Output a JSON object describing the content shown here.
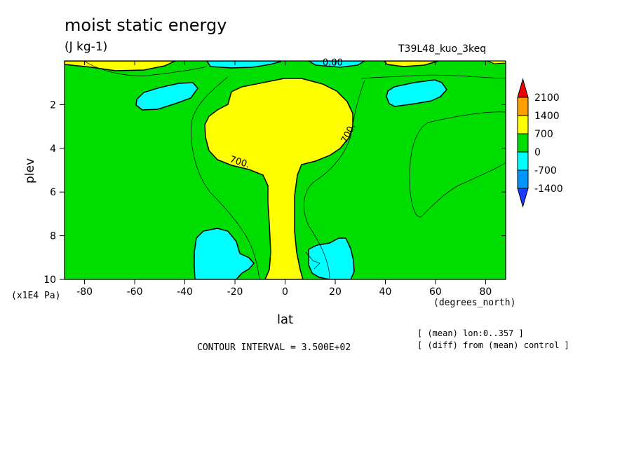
{
  "chart_data": {
    "type": "contour",
    "title": "moist static energy",
    "units": "(J kg-1)",
    "run_label": "T39L48_kuo_3keq",
    "xlabel": "lat",
    "x_units": "(degrees_north)",
    "ylabel": "plev",
    "y_units": "(x1E4 Pa)",
    "xlim": [
      -88,
      88
    ],
    "ylim": [
      10,
      0
    ],
    "x_ticks": [
      -80,
      -60,
      -40,
      -20,
      0,
      20,
      40,
      60,
      80
    ],
    "x_tick_labels": [
      "-80",
      "-60",
      "-40",
      "-20",
      "0",
      "20",
      "40",
      "60",
      "80"
    ],
    "y_ticks": [
      2,
      4,
      6,
      8,
      10
    ],
    "y_tick_labels": [
      "2",
      "4",
      "6",
      "8",
      "10"
    ],
    "contour_labels": [
      {
        "text": "0.00",
        "lat": 19,
        "plev": 0.05
      },
      {
        "text": "700.",
        "lat": 25,
        "plev": 3.3
      },
      {
        "text": "700.",
        "lat": -18,
        "plev": 4.6
      }
    ],
    "colorbar": {
      "levels": [
        "2100",
        "1400",
        "700",
        "0",
        "-700",
        "-1400"
      ],
      "colors": [
        "#ee0000",
        "#ffa000",
        "#ffff00",
        "#00dd00",
        "#00ffff",
        "#0096ff",
        "#1e3cff"
      ]
    },
    "contour_interval": "CONTOUR INTERVAL = 3.500E+02",
    "notes": [
      "[ (mean) lon:0..357 ]",
      "[ (diff) from (mean) control ]"
    ],
    "regions": [
      {
        "value_range": "700 to 1400",
        "desc": "central column and upper plume",
        "lat_range": [
          -32,
          28
        ],
        "plev_range": [
          0.9,
          10
        ]
      },
      {
        "value_range": "-700 to 0",
        "desc": "low-level negative SH",
        "lat_range": [
          -36,
          -12
        ],
        "plev_range": [
          7.7,
          10
        ]
      },
      {
        "value_range": "-700 to 0",
        "desc": "low-level negative NH",
        "lat_range": [
          10,
          28
        ],
        "plev_range": [
          8.1,
          10
        ]
      },
      {
        "value_range": "-700 to 0",
        "desc": "upper negative SH",
        "lat_range": [
          -58,
          -36
        ],
        "plev_range": [
          1.0,
          2.4
        ]
      },
      {
        "value_range": "-700 to 0",
        "desc": "upper negative NH",
        "lat_range": [
          40,
          65
        ],
        "plev_range": [
          1.0,
          2.3
        ]
      }
    ]
  }
}
